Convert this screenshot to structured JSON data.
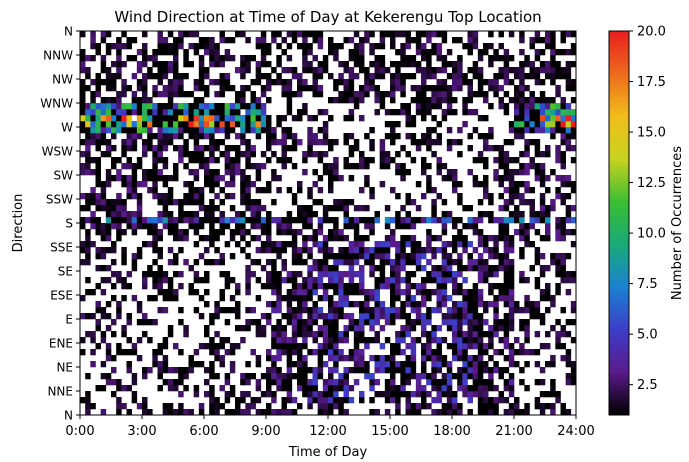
{
  "chart_data": {
    "type": "heatmap",
    "title": "Wind Direction at Time of Day at Kekerengu Top Location",
    "xlabel": "Time of Day",
    "ylabel": "Direction",
    "x_ticks": [
      "0:00",
      "3:00",
      "6:00",
      "9:00",
      "12:00",
      "15:00",
      "18:00",
      "21:00",
      "24:00"
    ],
    "y_ticks": [
      "N",
      "NNE",
      "NE",
      "ENE",
      "E",
      "ESE",
      "SE",
      "SSE",
      "S",
      "SSW",
      "SW",
      "WSW",
      "W",
      "WNW",
      "NW",
      "NNW",
      "N"
    ],
    "xlim": [
      0,
      24
    ],
    "n_time_bins": 96,
    "n_direction_bins": 64,
    "colorbar": {
      "label": "Number of Occurrences",
      "ticks": [
        "2.5",
        "5.0",
        "7.5",
        "10.0",
        "12.5",
        "15.0",
        "17.5",
        "20.0"
      ],
      "range": [
        1,
        20
      ],
      "colormap": [
        "#000000",
        "#5a1a8a",
        "#3c3ec8",
        "#1a82d0",
        "#19aa78",
        "#3cbe32",
        "#c8d21e",
        "#f0be19",
        "#ee6a1e",
        "#e81e1e"
      ]
    },
    "patterns": {
      "description_regions": [
        {
          "name": "westerly night band",
          "direction_rows": [
            47,
            51
          ],
          "time_range": [
            0,
            9
          ],
          "peak_value": 20
        },
        {
          "name": "westerly evening band",
          "direction_rows": [
            47,
            52
          ],
          "time_range": [
            21,
            24
          ],
          "peak_value": 14
        },
        {
          "name": "southerly line",
          "direction_rows": [
            32,
            32
          ],
          "time_range": [
            0,
            24
          ],
          "peak_value": 9
        },
        {
          "name": "easterly daytime region",
          "direction_rows": [
            2,
            28
          ],
          "time_range": [
            9,
            21
          ],
          "peak_value": 9
        }
      ]
    }
  }
}
